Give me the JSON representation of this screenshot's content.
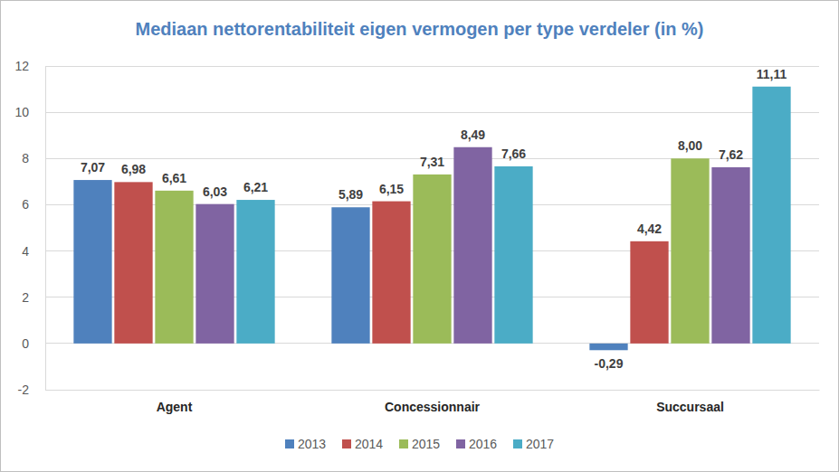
{
  "chart_data": {
    "type": "bar",
    "title": "Mediaan nettorentabiliteit eigen vermogen per type verdeler (in %)",
    "categories": [
      "Agent",
      "Concessionnair",
      "Succursaal"
    ],
    "series": [
      {
        "name": "2013",
        "color": "#4F81BD",
        "values": [
          7.07,
          5.89,
          -0.29
        ],
        "value_labels": [
          "7,07",
          "5,89",
          "-0,29"
        ]
      },
      {
        "name": "2014",
        "color": "#C0504D",
        "values": [
          6.98,
          6.15,
          4.42
        ],
        "value_labels": [
          "6,98",
          "6,15",
          "4,42"
        ]
      },
      {
        "name": "2015",
        "color": "#9BBB59",
        "values": [
          6.61,
          7.31,
          8.0
        ],
        "value_labels": [
          "6,61",
          "7,31",
          "8,00"
        ]
      },
      {
        "name": "2016",
        "color": "#8064A2",
        "values": [
          6.03,
          8.49,
          7.62
        ],
        "value_labels": [
          "6,03",
          "8,49",
          "7,62"
        ]
      },
      {
        "name": "2017",
        "color": "#4BACC6",
        "values": [
          6.21,
          7.66,
          11.11
        ],
        "value_labels": [
          "6,21",
          "7,66",
          "11,11"
        ]
      }
    ],
    "ylim": [
      -2,
      12
    ],
    "yticks": [
      -2,
      0,
      2,
      4,
      6,
      8,
      10,
      12
    ],
    "grid": true,
    "legend": "bottom",
    "data_labels": true
  }
}
